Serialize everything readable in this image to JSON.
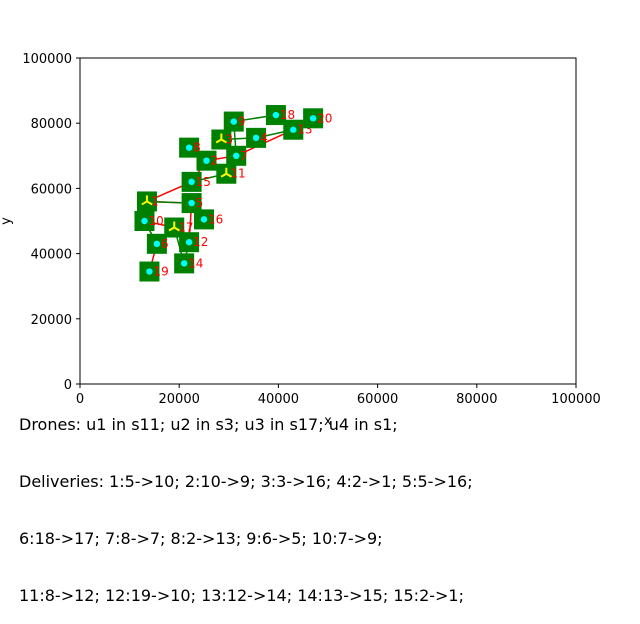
{
  "chart_data": {
    "type": "scatter",
    "title": "",
    "xlabel": "x",
    "ylabel": "y",
    "xlim": [
      0,
      100000
    ],
    "ylim": [
      0,
      100000
    ],
    "x_ticks": [
      "0",
      "20000",
      "40000",
      "60000",
      "80000",
      "100000"
    ],
    "y_ticks": [
      "0",
      "20000",
      "40000",
      "60000",
      "80000",
      "100000"
    ],
    "grid": false,
    "colors": {
      "station": "#008000",
      "node_marker": "#00ffff",
      "label": "#ff0000",
      "drone_route": "#ff0000",
      "delivery_link": "#008000",
      "drone_marker": "#ffff00"
    },
    "stations": [
      {
        "id": "1",
        "x": 13500,
        "y": 56000
      },
      {
        "id": "2",
        "x": 25500,
        "y": 68500
      },
      {
        "id": "3",
        "x": 28500,
        "y": 75000
      },
      {
        "id": "4",
        "x": 35500,
        "y": 75500
      },
      {
        "id": "5",
        "x": 22500,
        "y": 55500
      },
      {
        "id": "6",
        "x": 15500,
        "y": 43000
      },
      {
        "id": "7",
        "x": 31500,
        "y": 70000
      },
      {
        "id": "8",
        "x": 22000,
        "y": 72500
      },
      {
        "id": "9",
        "x": 31000,
        "y": 80500
      },
      {
        "id": "10",
        "x": 13000,
        "y": 50000
      },
      {
        "id": "11",
        "x": 29500,
        "y": 64500
      },
      {
        "id": "12",
        "x": 22000,
        "y": 43500
      },
      {
        "id": "13",
        "x": 43000,
        "y": 78000
      },
      {
        "id": "14",
        "x": 21000,
        "y": 37000
      },
      {
        "id": "15",
        "x": 22500,
        "y": 62000
      },
      {
        "id": "16",
        "x": 25000,
        "y": 50500
      },
      {
        "id": "17",
        "x": 19000,
        "y": 48000
      },
      {
        "id": "18",
        "x": 39500,
        "y": 82500
      },
      {
        "id": "19",
        "x": 14000,
        "y": 34500
      },
      {
        "id": "20",
        "x": 47000,
        "y": 81500
      }
    ],
    "drone_positions": [
      {
        "drone": "u1",
        "station": "11"
      },
      {
        "drone": "u2",
        "station": "3"
      },
      {
        "drone": "u3",
        "station": "17"
      },
      {
        "drone": "u4",
        "station": "1"
      }
    ],
    "red_routes": [
      [
        "1",
        "5"
      ],
      [
        "5",
        "16"
      ],
      [
        "1",
        "15"
      ],
      [
        "15",
        "2"
      ],
      [
        "2",
        "7"
      ],
      [
        "7",
        "13"
      ],
      [
        "13",
        "20"
      ],
      [
        "2",
        "8"
      ],
      [
        "5",
        "12"
      ],
      [
        "12",
        "17"
      ],
      [
        "17",
        "10"
      ],
      [
        "10",
        "6"
      ],
      [
        "6",
        "19"
      ]
    ],
    "green_links": [
      [
        "1",
        "5"
      ],
      [
        "15",
        "11"
      ],
      [
        "11",
        "7"
      ],
      [
        "7",
        "9"
      ],
      [
        "9",
        "3"
      ],
      [
        "9",
        "18"
      ],
      [
        "18",
        "13"
      ],
      [
        "3",
        "4"
      ],
      [
        "4",
        "13"
      ],
      [
        "8",
        "2"
      ],
      [
        "2",
        "11"
      ],
      [
        "17",
        "14"
      ],
      [
        "14",
        "12"
      ],
      [
        "6",
        "10"
      ]
    ]
  },
  "caption": {
    "lines": [
      "Drones: u1 in s11; u2 in s3; u3 in s17; u4 in s1;",
      "Deliveries: 1:5->10; 2:10->9; 3:3->16; 4:2->1; 5:5->16;",
      "6:18->17; 7:8->7; 8:2->13; 9:6->5; 10:7->9;",
      "11:8->12; 12:19->10; 13:12->14; 14:13->15; 15:2->1;"
    ]
  }
}
